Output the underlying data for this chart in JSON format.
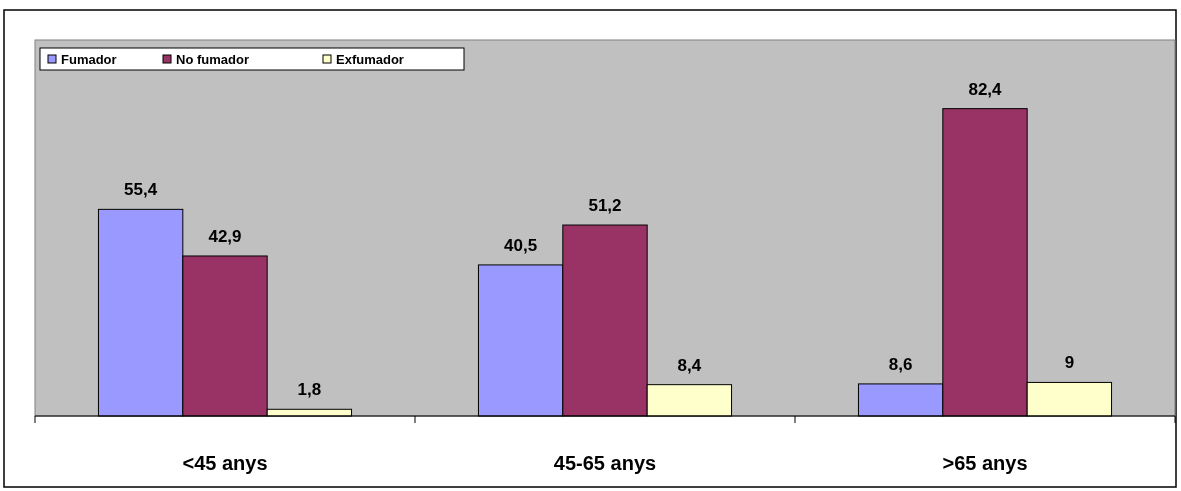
{
  "chart_data": {
    "type": "bar",
    "categories": [
      "<45 anys",
      "45-65 anys",
      ">65 anys"
    ],
    "series": [
      {
        "name": "Fumador",
        "color": "#9999ff",
        "values": [
          55.4,
          40.5,
          8.6
        ],
        "value_labels": [
          "55,4",
          "40,5",
          "8,6"
        ]
      },
      {
        "name": "No fumador",
        "color": "#993366",
        "values": [
          42.9,
          51.2,
          82.4
        ],
        "value_labels": [
          "42,9",
          "51,2",
          "82,4"
        ]
      },
      {
        "name": "Exfumador",
        "color": "#ffffcc",
        "values": [
          1.8,
          8.4,
          9
        ],
        "value_labels": [
          "1,8",
          "8,4",
          "9"
        ]
      }
    ],
    "ylim": [
      0,
      100
    ],
    "legend": "top left",
    "tick_labels": "x"
  }
}
